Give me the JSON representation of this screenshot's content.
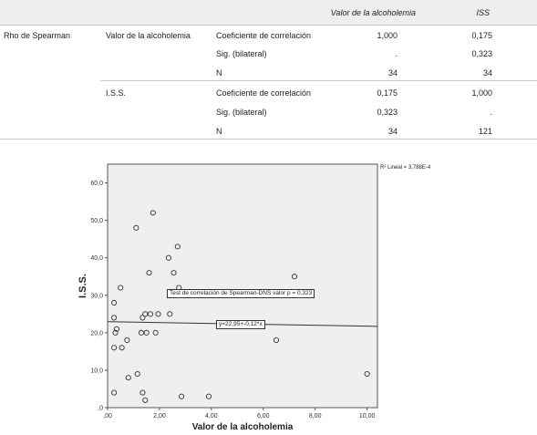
{
  "table": {
    "headers": {
      "col1": "Valor de la alcoholemia",
      "col2": "ISS"
    },
    "method": "Rho de Spearman",
    "groups": [
      {
        "var": "Valor de la alcoholemia",
        "rows": [
          {
            "stat": "Coeficiente de correlación",
            "v1": "1,000",
            "v2": "0,175"
          },
          {
            "stat": "Sig. (bilateral)",
            "v1": ".",
            "v2": "0,323"
          },
          {
            "stat": "N",
            "v1": "34",
            "v2": "34"
          }
        ]
      },
      {
        "var": "I.S.S.",
        "rows": [
          {
            "stat": "Coeficiente de correlación",
            "v1": "0,175",
            "v2": "1,000"
          },
          {
            "stat": "Sig. (bilateral)",
            "v1": "0,323",
            "v2": "."
          },
          {
            "stat": "N",
            "v1": "34",
            "v2": "121"
          }
        ]
      }
    ]
  },
  "chart_data": {
    "type": "scatter",
    "xlabel": "Valor de la alcoholemia",
    "ylabel": "I.S.S.",
    "xlim": [
      0,
      10.4
    ],
    "ylim": [
      0,
      65
    ],
    "x_ticks": [
      0,
      2,
      4,
      6,
      8,
      10
    ],
    "x_tick_labels": [
      ",00",
      "2,00",
      "4,00",
      "6,00",
      "8,00",
      "10,00"
    ],
    "y_ticks": [
      0,
      10,
      20,
      30,
      40,
      50,
      60
    ],
    "y_tick_labels": [
      ",0",
      "10,0",
      "20,0",
      "30,0",
      "40,0",
      "50,0",
      "60,0"
    ],
    "r2_label": "R² Lineal = 3,788E-4",
    "test_label": "Test de correlación de Spearman-DNS valor p = 0,323",
    "fit_label": "y=22,95+-0,12*x",
    "fit": {
      "intercept": 22.95,
      "slope": -0.12
    },
    "points": [
      {
        "x": 0.25,
        "y": 28
      },
      {
        "x": 0.25,
        "y": 24
      },
      {
        "x": 0.3,
        "y": 20
      },
      {
        "x": 0.35,
        "y": 21
      },
      {
        "x": 0.25,
        "y": 16
      },
      {
        "x": 0.5,
        "y": 32
      },
      {
        "x": 0.55,
        "y": 16
      },
      {
        "x": 0.75,
        "y": 18
      },
      {
        "x": 0.8,
        "y": 8
      },
      {
        "x": 0.25,
        "y": 4
      },
      {
        "x": 1.1,
        "y": 48
      },
      {
        "x": 1.15,
        "y": 9
      },
      {
        "x": 1.3,
        "y": 20
      },
      {
        "x": 1.35,
        "y": 24
      },
      {
        "x": 1.35,
        "y": 4
      },
      {
        "x": 1.45,
        "y": 25
      },
      {
        "x": 1.45,
        "y": 2
      },
      {
        "x": 1.5,
        "y": 20
      },
      {
        "x": 1.6,
        "y": 36
      },
      {
        "x": 1.65,
        "y": 25
      },
      {
        "x": 1.75,
        "y": 52
      },
      {
        "x": 1.85,
        "y": 20
      },
      {
        "x": 1.95,
        "y": 25
      },
      {
        "x": 2.35,
        "y": 40
      },
      {
        "x": 2.4,
        "y": 25
      },
      {
        "x": 2.55,
        "y": 36
      },
      {
        "x": 2.7,
        "y": 43
      },
      {
        "x": 2.75,
        "y": 32
      },
      {
        "x": 2.85,
        "y": 3
      },
      {
        "x": 3.9,
        "y": 3
      },
      {
        "x": 6.5,
        "y": 18
      },
      {
        "x": 7.2,
        "y": 35
      },
      {
        "x": 10.0,
        "y": 9
      }
    ]
  }
}
